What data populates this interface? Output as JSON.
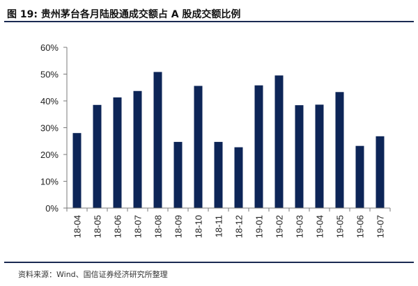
{
  "title": "图 19: 贵州茅台各月陆股通成交额占 A 股成交额比例",
  "source": "资料来源：Wind、国信证券经济研究所整理",
  "colors": {
    "bar": "#0d2557",
    "axis": "#7a7a7a",
    "rule": "#1a2a52"
  },
  "chart_data": {
    "type": "bar",
    "categories": [
      "18-04",
      "18-05",
      "18-06",
      "18-07",
      "18-08",
      "18-09",
      "18-10",
      "18-11",
      "18-12",
      "19-01",
      "19-02",
      "19-03",
      "19-04",
      "19-05",
      "19-06",
      "19-07"
    ],
    "values": [
      28,
      38.5,
      41.3,
      43.7,
      50.8,
      24.7,
      45.6,
      24.7,
      22.7,
      45.8,
      49.5,
      38.4,
      38.6,
      43.3,
      23.2,
      26.8
    ],
    "yticks": [
      "0%",
      "10%",
      "20%",
      "30%",
      "40%",
      "50%",
      "60%"
    ],
    "ylim": [
      0,
      60
    ],
    "grid": false,
    "legend": "none"
  }
}
